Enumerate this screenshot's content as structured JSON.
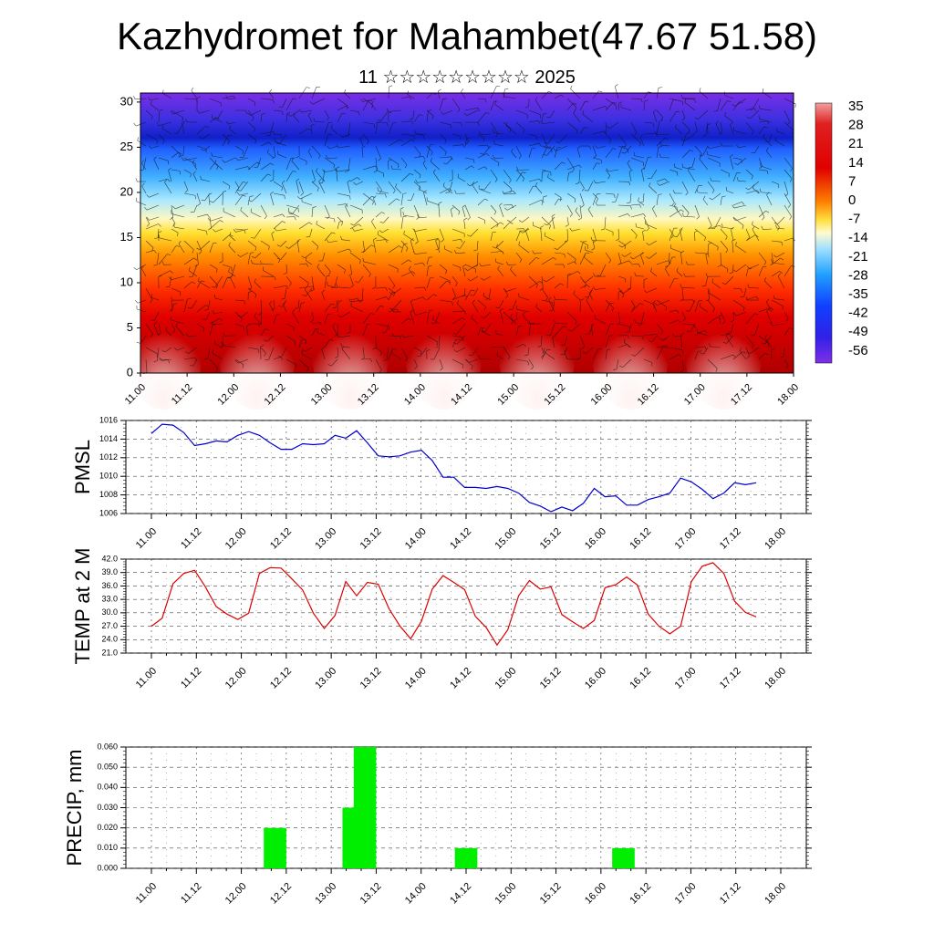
{
  "chart_data": [
    {
      "type": "heatmap",
      "title": "Kazhydromet for Mahambet(47.67 51.58)",
      "subtitle": "11 ☆☆☆☆☆☆☆☆☆ 2025",
      "xlabel": "",
      "ylabel": "",
      "x_ticks": [
        "11.00",
        "11.12",
        "12.00",
        "12.12",
        "13.00",
        "13.12",
        "14.00",
        "14.12",
        "15.00",
        "15.12",
        "16.00",
        "16.12",
        "17.00",
        "17.12",
        "18.00"
      ],
      "y_ticks": [
        "0",
        "5",
        "10",
        "15",
        "20",
        "25",
        "30"
      ],
      "ylim": [
        0,
        31
      ],
      "colorbar_labels": [
        "35",
        "28",
        "21",
        "14",
        "7",
        "0",
        "-7",
        "-14",
        "-21",
        "-28",
        "-35",
        "-42",
        "-49",
        "-56"
      ],
      "overlay": "wind barbs",
      "colors": {
        "hot": "#c00000",
        "cold": "#5a00d8"
      }
    },
    {
      "type": "line",
      "ylabel": "PMSL",
      "ylim": [
        1006,
        1016
      ],
      "y_ticks": [
        "1016",
        "1014",
        "1012",
        "1010",
        "1008",
        "1006"
      ],
      "x_ticks": [
        "11.00",
        "11.12",
        "12.00",
        "12.12",
        "13.00",
        "13.12",
        "14.00",
        "14.12",
        "15.00",
        "15.12",
        "16.00",
        "16.12",
        "17.00",
        "17.12",
        "18.00"
      ],
      "color": "#0000cc",
      "values": [
        1014.6,
        1015.6,
        1015.5,
        1014.7,
        1013.3,
        1013.5,
        1013.8,
        1013.7,
        1014.4,
        1014.8,
        1014.4,
        1013.6,
        1012.9,
        1012.9,
        1013.5,
        1013.4,
        1013.5,
        1014.4,
        1014.1,
        1014.9,
        1013.6,
        1012.2,
        1012.1,
        1012.2,
        1012.6,
        1012.8,
        1011.7,
        1009.9,
        1009.9,
        1008.8,
        1008.8,
        1008.7,
        1008.9,
        1008.7,
        1008.2,
        1007.2,
        1006.8,
        1006.2,
        1006.7,
        1006.3,
        1007.1,
        1008.7,
        1007.8,
        1007.9,
        1006.9,
        1006.9,
        1007.5,
        1007.8,
        1008.2,
        1009.8,
        1009.4,
        1008.6,
        1007.6,
        1008.2,
        1009.3,
        1009.1,
        1009.3
      ]
    },
    {
      "type": "line",
      "ylabel": "TEMP at 2 M",
      "ylim": [
        21,
        42
      ],
      "y_ticks": [
        "42.0",
        "39.0",
        "36.0",
        "33.0",
        "30.0",
        "27.0",
        "24.0",
        "21.0"
      ],
      "x_ticks": [
        "11.00",
        "11.12",
        "12.00",
        "12.12",
        "13.00",
        "13.12",
        "14.00",
        "14.12",
        "15.00",
        "15.12",
        "16.00",
        "16.12",
        "17.00",
        "17.12",
        "18.00"
      ],
      "color": "#dd0000",
      "values": [
        27.0,
        28.8,
        36.5,
        38.8,
        39.5,
        35.8,
        31.4,
        29.7,
        28.5,
        29.9,
        38.8,
        40.1,
        40.0,
        37.6,
        35.1,
        29.9,
        26.5,
        29.4,
        37.0,
        33.8,
        36.8,
        36.4,
        30.9,
        27.1,
        24.2,
        28.1,
        35.3,
        38.3,
        36.8,
        35.2,
        29.2,
        26.7,
        22.8,
        26.2,
        33.8,
        37.2,
        35.3,
        35.8,
        29.6,
        28.0,
        26.5,
        28.3,
        35.6,
        36.3,
        38.0,
        36.2,
        29.7,
        27.0,
        25.3,
        27.0,
        37.0,
        40.4,
        41.2,
        38.8,
        32.6,
        30.1,
        29.1
      ]
    },
    {
      "type": "bar",
      "ylabel": "PRECIP, mm",
      "ylim": [
        0,
        0.06
      ],
      "y_ticks": [
        "0.060",
        "0.050",
        "0.040",
        "0.030",
        "0.020",
        "0.010",
        "0.000"
      ],
      "x_ticks": [
        "11.00",
        "11.12",
        "12.00",
        "12.12",
        "13.00",
        "13.12",
        "14.00",
        "14.12",
        "15.00",
        "15.12",
        "16.00",
        "16.12",
        "17.00",
        "17.12",
        "18.00"
      ],
      "color": "#00ee00",
      "bars": [
        {
          "x": "12.09",
          "value": 0.02
        },
        {
          "x": "13.06",
          "value": 0.03
        },
        {
          "x": "13.09",
          "value": 0.06
        },
        {
          "x": "14.12",
          "value": 0.01
        },
        {
          "x": "16.06",
          "value": 0.01
        }
      ]
    }
  ]
}
